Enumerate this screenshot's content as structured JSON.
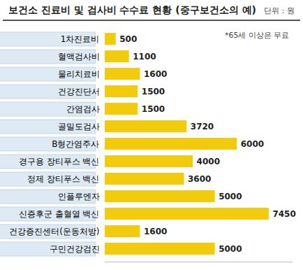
{
  "chart_data": {
    "type": "bar",
    "orientation": "horizontal",
    "title": "보건소 진료비 및 검사비 수수료 현황 (중구보건소의 예)",
    "subtitle": "단위 : 원",
    "annotations": [
      "*65세 이상은 무료"
    ],
    "categories": [
      "1차진료비",
      "혈액검사비",
      "물리치료비",
      "건강진단서",
      "간염검사",
      "골밀도검사",
      "B형간염주사",
      "경구용 장티푸스 백신",
      "정제 장티푸스 백신",
      "인플루엔자",
      "신증후군 출혈열 백신",
      "건강증진센터(운동처방)",
      "구민건강검진"
    ],
    "values": [
      500,
      1100,
      1600,
      1500,
      1500,
      3720,
      6000,
      4000,
      3600,
      5000,
      7450,
      1600,
      5000
    ],
    "color": "#f2cc0c",
    "xlim": [
      0,
      8500
    ],
    "data_labels": true,
    "tick_labels": "y",
    "grid": false
  }
}
